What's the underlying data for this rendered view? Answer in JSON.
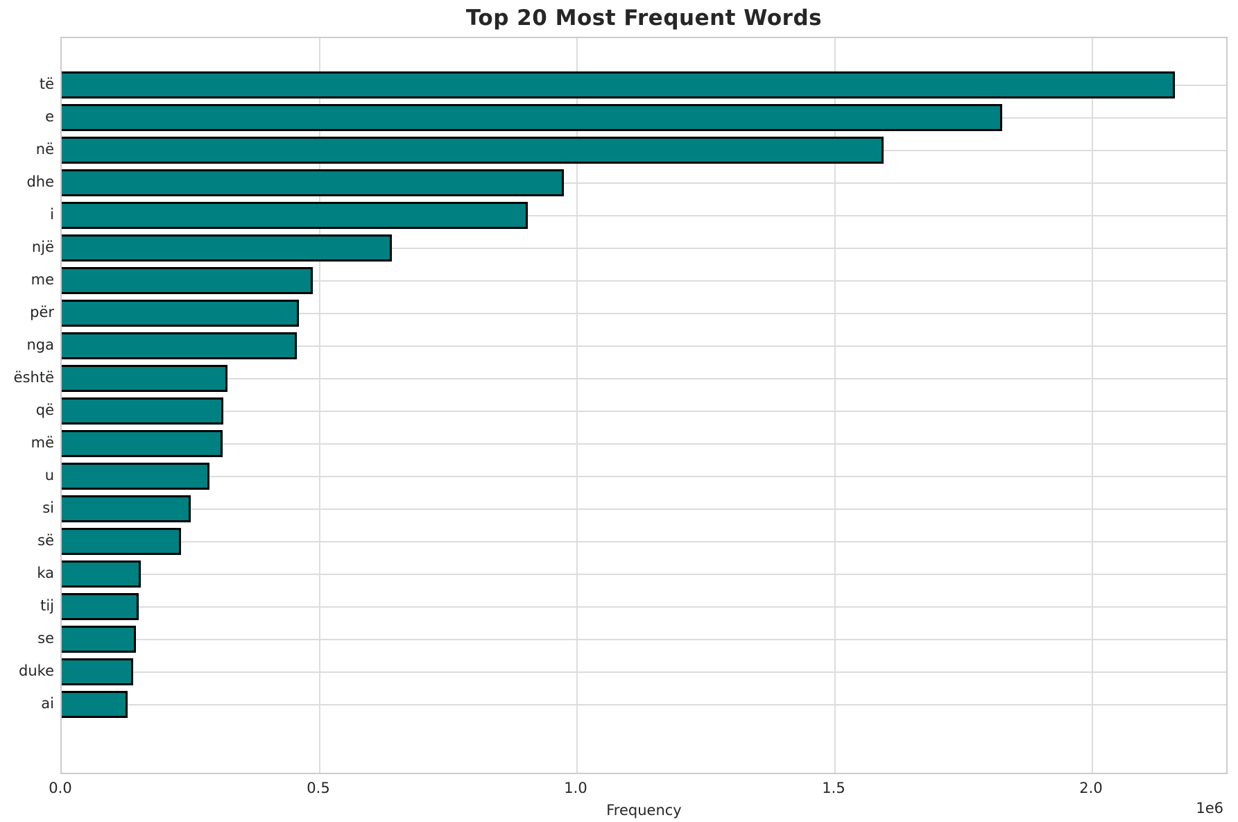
{
  "chart_data": {
    "type": "bar",
    "orientation": "horizontal",
    "title": "Top 20 Most Frequent Words",
    "xlabel": "Frequency",
    "ylabel": "",
    "x_offset_label": "1e6",
    "categories": [
      "të",
      "e",
      "në",
      "dhe",
      "i",
      "një",
      "me",
      "për",
      "nga",
      "është",
      "që",
      "më",
      "u",
      "si",
      "së",
      "ka",
      "tij",
      "se",
      "duke",
      "ai"
    ],
    "values": [
      2160000,
      1825000,
      1595000,
      975000,
      905000,
      640000,
      487000,
      460000,
      456000,
      321000,
      314000,
      312000,
      287000,
      251000,
      231000,
      153000,
      150000,
      144000,
      139000,
      128000
    ],
    "xlim": [
      0,
      2265000
    ],
    "xticks": [
      0,
      500000,
      1000000,
      1500000,
      2000000
    ],
    "xtick_labels": [
      "0.0",
      "0.5",
      "1.0",
      "1.5",
      "2.0"
    ],
    "grid": true,
    "legend": false,
    "bar_color": "#008080",
    "bar_edge_color": "#000000",
    "grid_color": "#dcdcdc",
    "spine_color": "#cccccc",
    "text_color": "#262626",
    "background_color": "#ffffff"
  }
}
